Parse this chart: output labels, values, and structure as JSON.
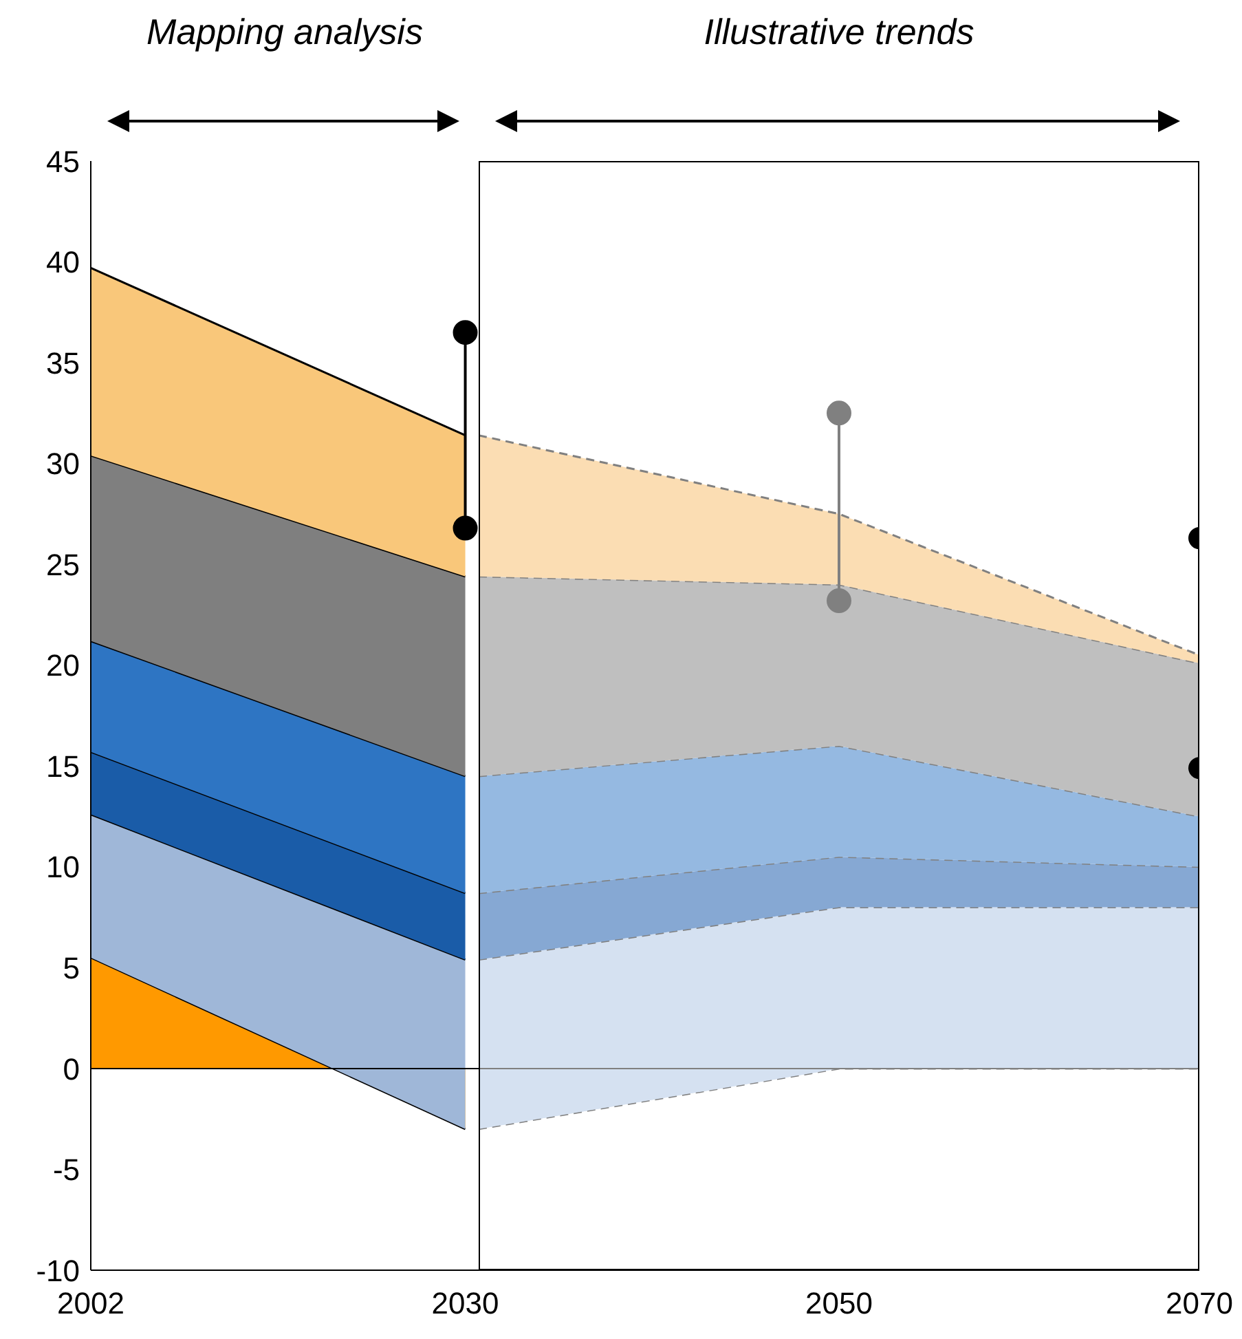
{
  "chart_data": [
    {
      "type": "area",
      "stacked": true,
      "xlim": [
        2002,
        2031
      ],
      "ylim": [
        -10,
        45
      ],
      "xticks": [
        2002,
        2030
      ],
      "yticks": [
        -10,
        -5,
        0,
        5,
        10,
        15,
        20,
        25,
        30,
        35,
        40,
        45
      ],
      "ref_lines": [
        {
          "axis": "y",
          "value": 0,
          "color": "#000000"
        }
      ],
      "annotations": [
        "Mapping analysis"
      ],
      "series": [
        {
          "x": [
            2002,
            2030
          ],
          "values": [
            5.5,
            -3
          ],
          "color": "#ff9900"
        },
        {
          "x": [
            2002,
            2030
          ],
          "values": [
            7.1,
            8.4
          ],
          "color": "#9fb7d8"
        },
        {
          "x": [
            2002,
            2030
          ],
          "values": [
            3.1,
            3.3
          ],
          "color": "#1a5ca8"
        },
        {
          "x": [
            2002,
            2030
          ],
          "values": [
            5.5,
            5.8
          ],
          "color": "#2e75c3"
        },
        {
          "x": [
            2002,
            2030
          ],
          "values": [
            9.2,
            9.9
          ],
          "color": "#7f7f7f"
        },
        {
          "x": [
            2002,
            2030
          ],
          "values": [
            9.3,
            7
          ],
          "color": "#f9c77a"
        },
        {
          "type": "line",
          "marker": "circle",
          "x": [
            2030,
            2030
          ],
          "values": [
            36.5,
            26.8
          ],
          "color": "#000000"
        }
      ]
    },
    {
      "type": "area",
      "stacked": true,
      "xlim": [
        2030,
        2070
      ],
      "ylim": [
        -10,
        45
      ],
      "xticks": [
        2050,
        2070
      ],
      "tick_labels": "x",
      "ref_lines": [
        {
          "axis": "y",
          "value": 0,
          "color": "#808080"
        }
      ],
      "annotations": [
        "Illustrative trends"
      ],
      "series": [
        {
          "x": [
            2030,
            2050,
            2070
          ],
          "values": [
            -3,
            0,
            0
          ],
          "color": "#d5e1f1",
          "line_style": "dashed"
        },
        {
          "x": [
            2030,
            2050,
            2070
          ],
          "values": [
            8.4,
            8,
            8
          ],
          "color": "#d5e1f1",
          "line_style": "dashed"
        },
        {
          "x": [
            2030,
            2050,
            2070
          ],
          "values": [
            3.3,
            2.5,
            2
          ],
          "color": "#86a8d3",
          "line_style": "dashed"
        },
        {
          "x": [
            2030,
            2050,
            2070
          ],
          "values": [
            5.8,
            5.5,
            2.5
          ],
          "color": "#95b9e1",
          "line_style": "dashed"
        },
        {
          "x": [
            2030,
            2050,
            2070
          ],
          "values": [
            9.9,
            8,
            7.6
          ],
          "color": "#bfbfbf",
          "line_style": "dashed"
        },
        {
          "x": [
            2030,
            2050,
            2070
          ],
          "values": [
            7,
            3.5,
            0.4
          ],
          "color": "#fbddb3",
          "line_style": "dashed"
        },
        {
          "type": "line",
          "marker": "circle",
          "x": [
            2050,
            2050
          ],
          "values": [
            32.5,
            23.2
          ],
          "color": "#808080"
        },
        {
          "type": "scatter",
          "marker": "circle",
          "x": [
            2070,
            2070
          ],
          "values": [
            26.3,
            14.9
          ],
          "color": "#000000"
        }
      ]
    }
  ]
}
